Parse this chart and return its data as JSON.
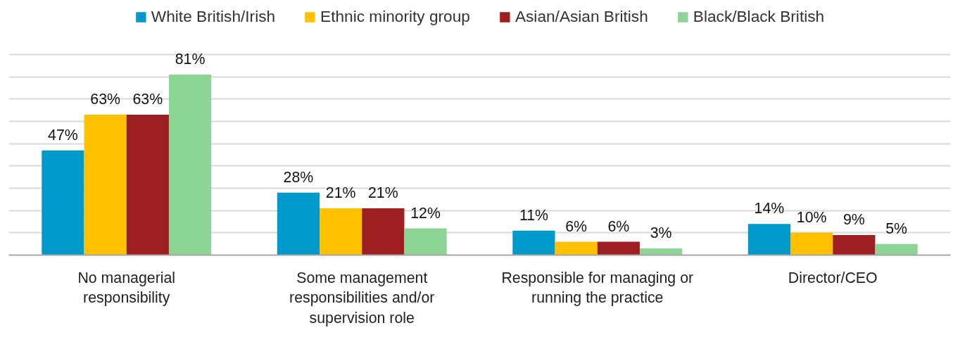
{
  "chart_data": {
    "type": "bar",
    "categories": [
      "No managerial responsibility",
      "Some management responsibilities and/or supervision role",
      "Responsible for managing or running the practice",
      "Director/CEO"
    ],
    "series": [
      {
        "name": "White British/Irish",
        "color": "#0099cc",
        "values": [
          47,
          28,
          11,
          14
        ],
        "value_labels": [
          "47%",
          "28%",
          "11%",
          "14%"
        ]
      },
      {
        "name": "Ethnic minority group",
        "color": "#ffc000",
        "values": [
          63,
          21,
          6,
          10
        ],
        "value_labels": [
          "63%",
          "21%",
          "6%",
          "10%"
        ]
      },
      {
        "name": "Asian/Asian British",
        "color": "#9e1f22",
        "values": [
          63,
          21,
          6,
          9
        ],
        "value_labels": [
          "63%",
          "21%",
          "6%",
          "9%"
        ]
      },
      {
        "name": "Black/Black British",
        "color": "#8cd597",
        "values": [
          81,
          12,
          3,
          5
        ],
        "value_labels": [
          "81%",
          "12%",
          "3%",
          "5%"
        ]
      }
    ],
    "yticks": [
      {
        "value": 0,
        "label": null
      },
      {
        "value": 10,
        "label": null
      },
      {
        "value": 20,
        "label": null
      },
      {
        "value": 30,
        "label": null
      },
      {
        "value": 40,
        "label": null
      },
      {
        "value": 50,
        "label": null
      },
      {
        "value": 60,
        "label": null
      },
      {
        "value": 70,
        "label": null
      },
      {
        "value": 80,
        "label": null
      },
      {
        "value": 90,
        "label": null
      }
    ],
    "grid": "y",
    "legend": "top"
  }
}
